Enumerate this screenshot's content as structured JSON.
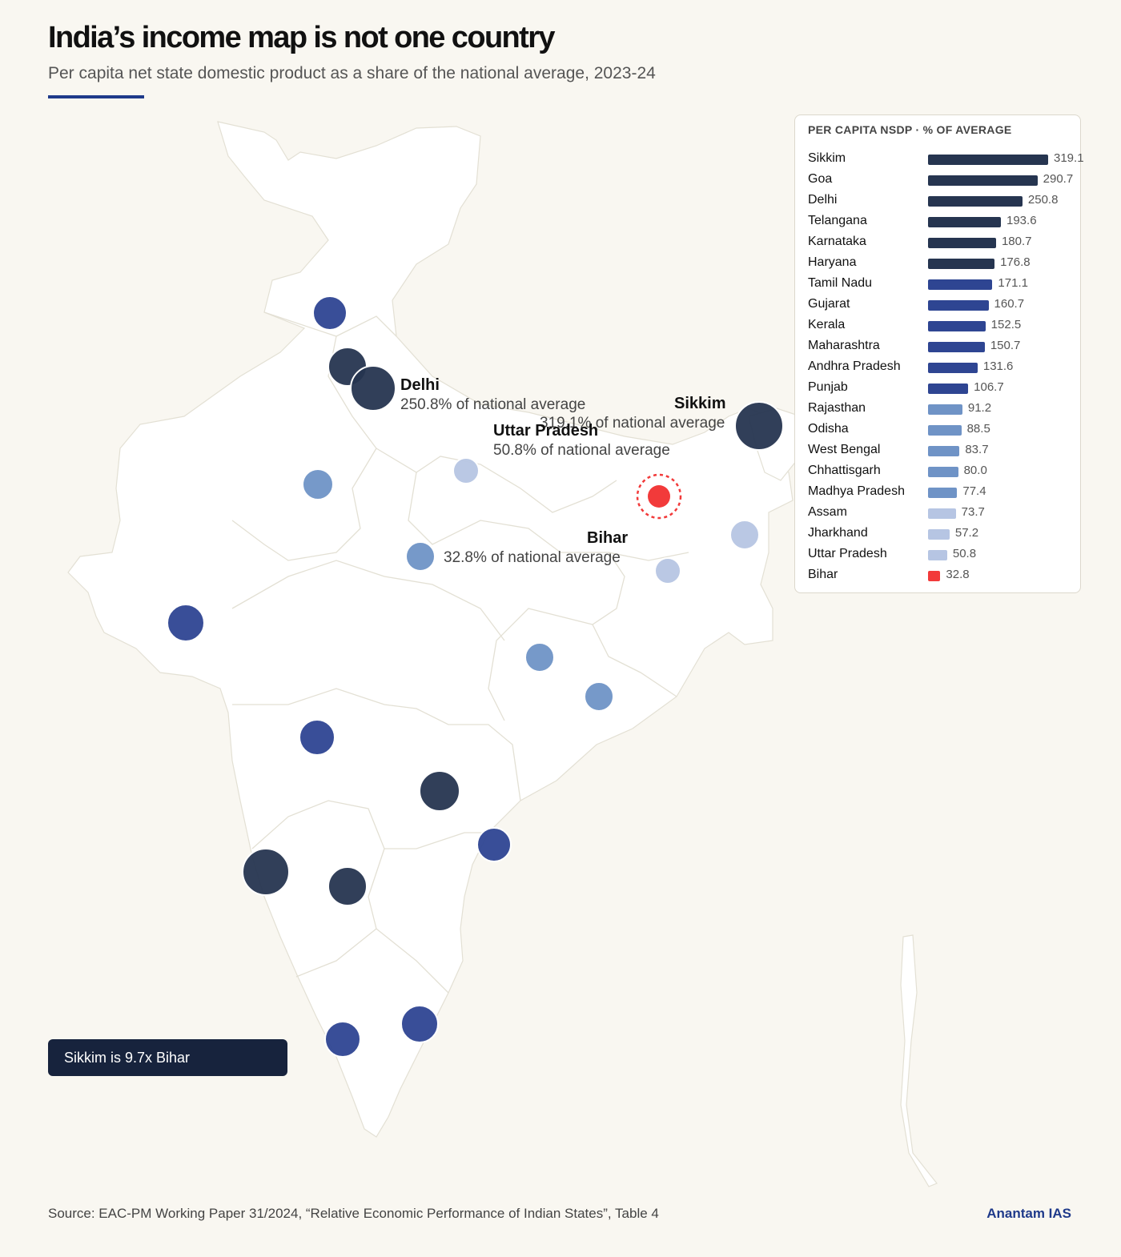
{
  "title": "India’s income map is not one country",
  "subtitle": "Per capita net state domestic product as a share of the national average, 2023-24",
  "colors": {
    "tier_top": "#263550",
    "tier_high": "#2e4592",
    "tier_mid": "#6f93c6",
    "tier_low": "#b6c5e3",
    "highlight": "#f23a3a",
    "brand": "#1f3a8a"
  },
  "map": {
    "callouts": [
      {
        "id": "delhi",
        "name": "Delhi",
        "value": "250.8% of national average"
      },
      {
        "id": "sikkim",
        "name": "Sikkim",
        "value": "319.1% of national average"
      },
      {
        "id": "uttar-pradesh",
        "name": "Uttar Pradesh",
        "value": "50.8% of national average"
      },
      {
        "id": "bihar",
        "name": "Bihar",
        "value": "32.8% of national average"
      }
    ],
    "badge": "Sikkim is 9.7x Bihar"
  },
  "chart_data": {
    "type": "bar",
    "title": "PER CAPITA NSDP · % OF AVERAGE",
    "categories": [
      "Sikkim",
      "Goa",
      "Delhi",
      "Telangana",
      "Karnataka",
      "Haryana",
      "Tamil Nadu",
      "Gujarat",
      "Kerala",
      "Maharashtra",
      "Andhra Pradesh",
      "Punjab",
      "Rajasthan",
      "Odisha",
      "West Bengal",
      "Chhattisgarh",
      "Madhya Pradesh",
      "Assam",
      "Jharkhand",
      "Uttar Pradesh",
      "Bihar"
    ],
    "values": [
      319.1,
      290.7,
      250.8,
      193.6,
      180.7,
      176.8,
      171.1,
      160.7,
      152.5,
      150.7,
      131.6,
      106.7,
      91.2,
      88.5,
      83.7,
      80.0,
      77.4,
      73.7,
      57.2,
      50.8,
      32.8
    ],
    "labels": [
      "319.1",
      "290.7",
      "250.8",
      "193.6",
      "180.7",
      "176.8",
      "171.1",
      "160.7",
      "152.5",
      "150.7",
      "131.6",
      "106.7",
      "91.2",
      "88.5",
      "83.7",
      "80.0",
      "77.4",
      "73.7",
      "57.2",
      "50.8",
      "32.8"
    ],
    "tiers": [
      "top",
      "top",
      "top",
      "top",
      "top",
      "top",
      "high",
      "high",
      "high",
      "high",
      "high",
      "high",
      "mid",
      "mid",
      "mid",
      "mid",
      "mid",
      "low",
      "low",
      "low",
      "highlight"
    ],
    "orientation": "horizontal"
  },
  "footer": {
    "source": "Source: EAC-PM Working Paper 31/2024, “Relative Economic Performance of Indian States”, Table 4",
    "brand": "Anantam IAS"
  }
}
